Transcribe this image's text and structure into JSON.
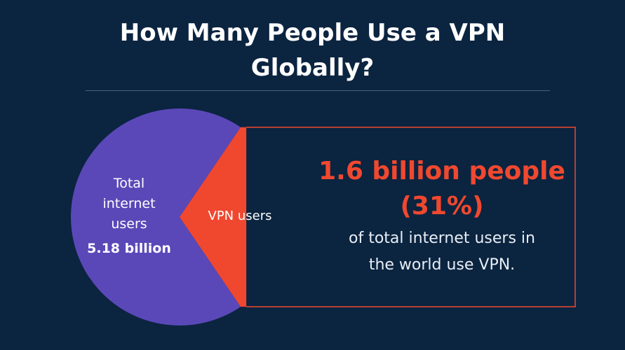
{
  "title": {
    "line1": "How Many People Use a VPN",
    "line2": "Globally?"
  },
  "callout": {
    "headline": "1.6 billion people",
    "percent": "(31%)",
    "line1": "of total internet users in",
    "line2": "the world use VPN."
  },
  "chart_data": {
    "type": "pie",
    "slices": [
      {
        "label_lines": [
          "Total",
          "internet",
          "users"
        ],
        "value_label": "5.18 billion",
        "color": "#5a48b8"
      },
      {
        "label_lines": [
          "VPN users"
        ],
        "share": 0.31,
        "color": "#f0482f"
      }
    ]
  },
  "colors": {
    "background": "#0b2440",
    "accent": "#f0482f",
    "pie_main": "#5a48b8"
  }
}
